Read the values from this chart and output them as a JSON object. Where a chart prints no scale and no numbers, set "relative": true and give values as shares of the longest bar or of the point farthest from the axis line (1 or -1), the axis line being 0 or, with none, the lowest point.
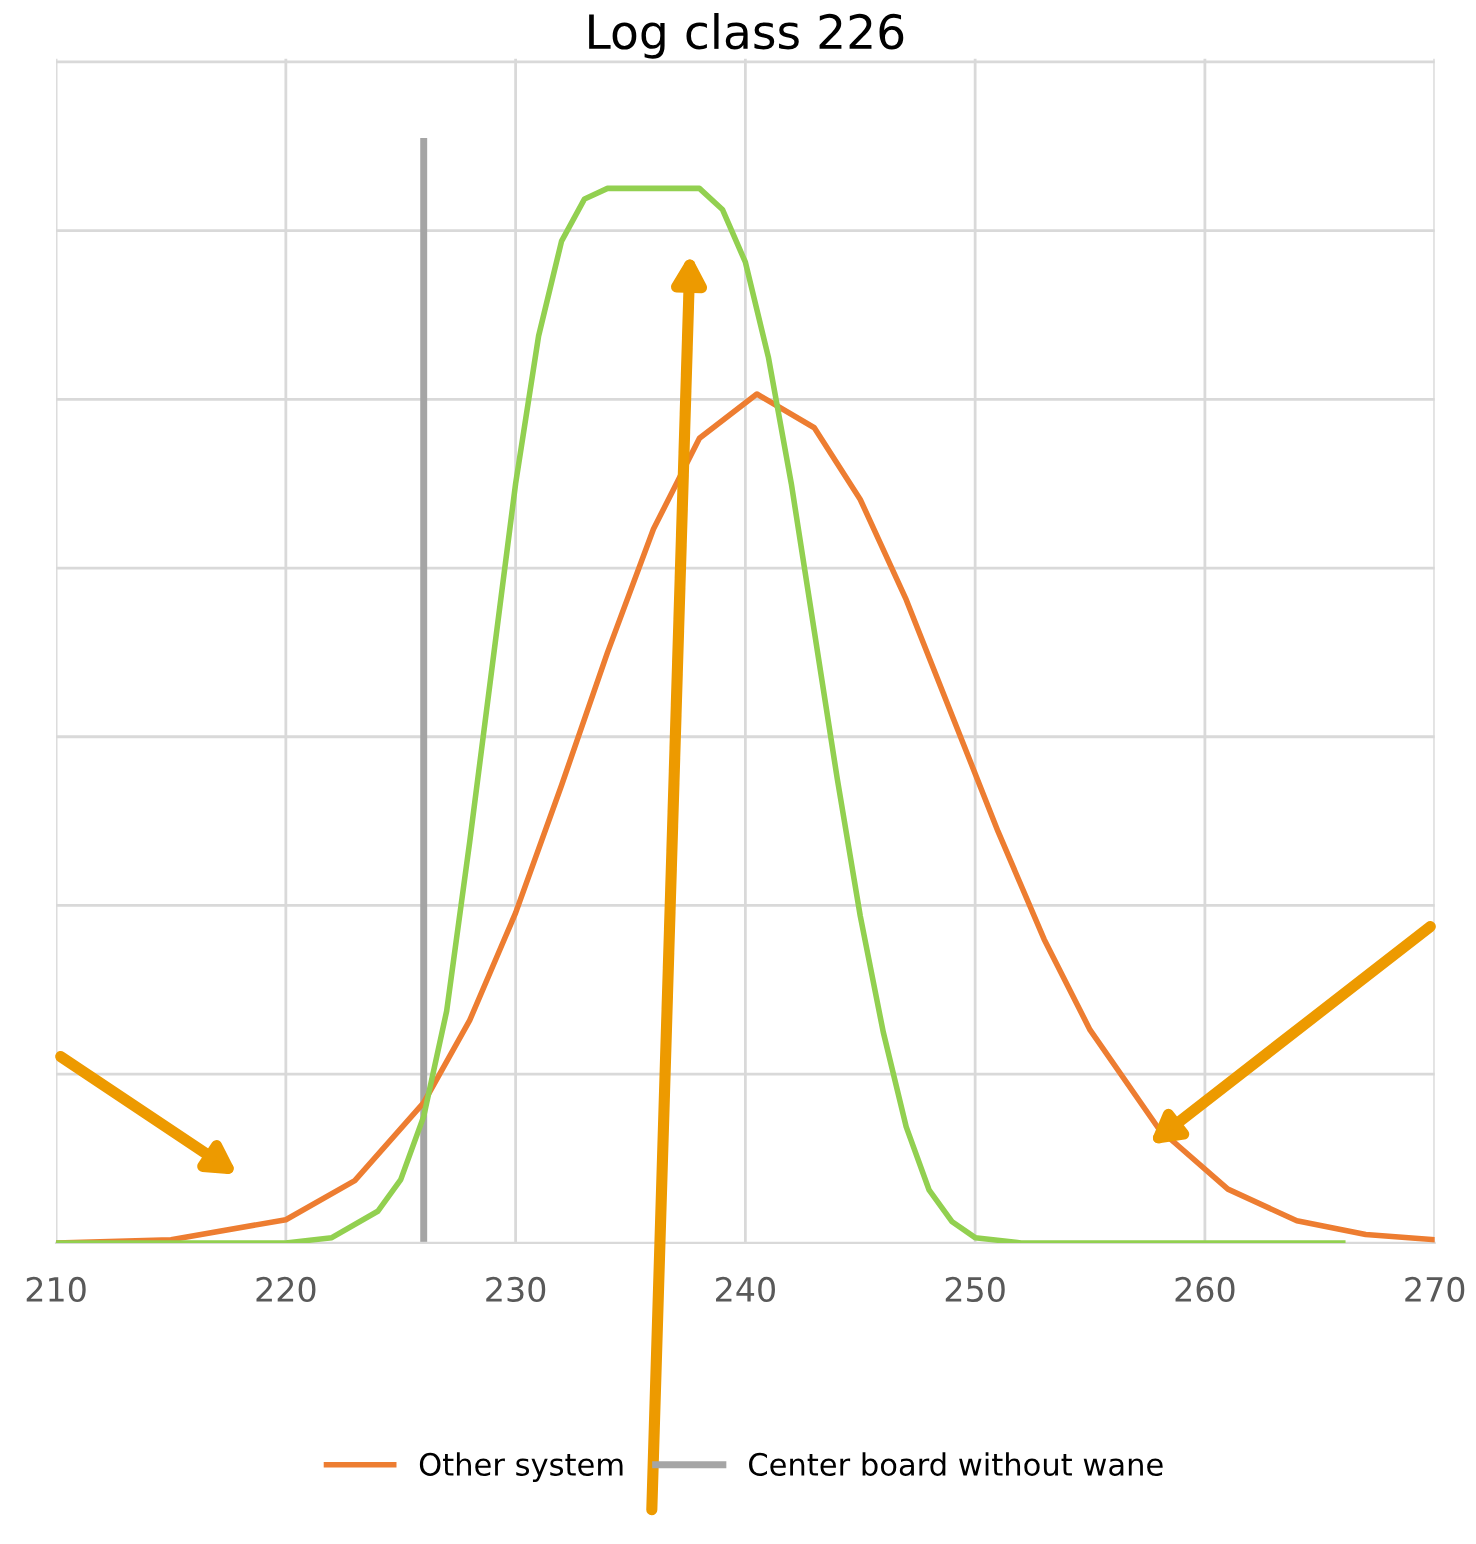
{
  "chart_data": {
    "type": "line",
    "title": "Log class 226",
    "relative": true,
    "xlim": [
      210,
      270
    ],
    "xticks": [
      210,
      220,
      230,
      240,
      250,
      260,
      270
    ],
    "grid": true,
    "legend": "bottom",
    "marker": "none",
    "line_style": "solid",
    "series": [
      {
        "name": "Other system",
        "color": "#ed7d31",
        "x": [
          210,
          215,
          220,
          223,
          226,
          228,
          230,
          232,
          234,
          236,
          238,
          240.5,
          243,
          245,
          247,
          249,
          251,
          253,
          255,
          258,
          261,
          264,
          267,
          270
        ],
        "values": [
          0,
          0.003,
          0.022,
          0.059,
          0.133,
          0.211,
          0.313,
          0.434,
          0.56,
          0.677,
          0.763,
          0.805,
          0.773,
          0.705,
          0.61,
          0.5,
          0.39,
          0.288,
          0.202,
          0.108,
          0.051,
          0.021,
          0.008,
          0.003
        ]
      },
      {
        "color": "#92d050",
        "x": [
          210,
          220,
          222,
          224,
          225,
          226,
          227,
          228,
          229,
          230,
          231,
          232,
          233,
          234,
          236,
          238,
          239,
          240,
          241,
          242,
          243,
          244,
          245,
          246,
          247,
          248,
          249,
          250,
          252,
          266
        ],
        "values": [
          0,
          0,
          0.005,
          0.03,
          0.06,
          0.12,
          0.22,
          0.38,
          0.55,
          0.72,
          0.86,
          0.95,
          0.99,
          1,
          1,
          1,
          0.98,
          0.93,
          0.84,
          0.72,
          0.58,
          0.44,
          0.31,
          0.2,
          0.11,
          0.05,
          0.02,
          0.005,
          0,
          0
        ]
      }
    ],
    "ref_lines": [
      {
        "axis": "x",
        "value": 226,
        "label": "Center board without wane",
        "color": "#a5a5a5"
      }
    ]
  }
}
